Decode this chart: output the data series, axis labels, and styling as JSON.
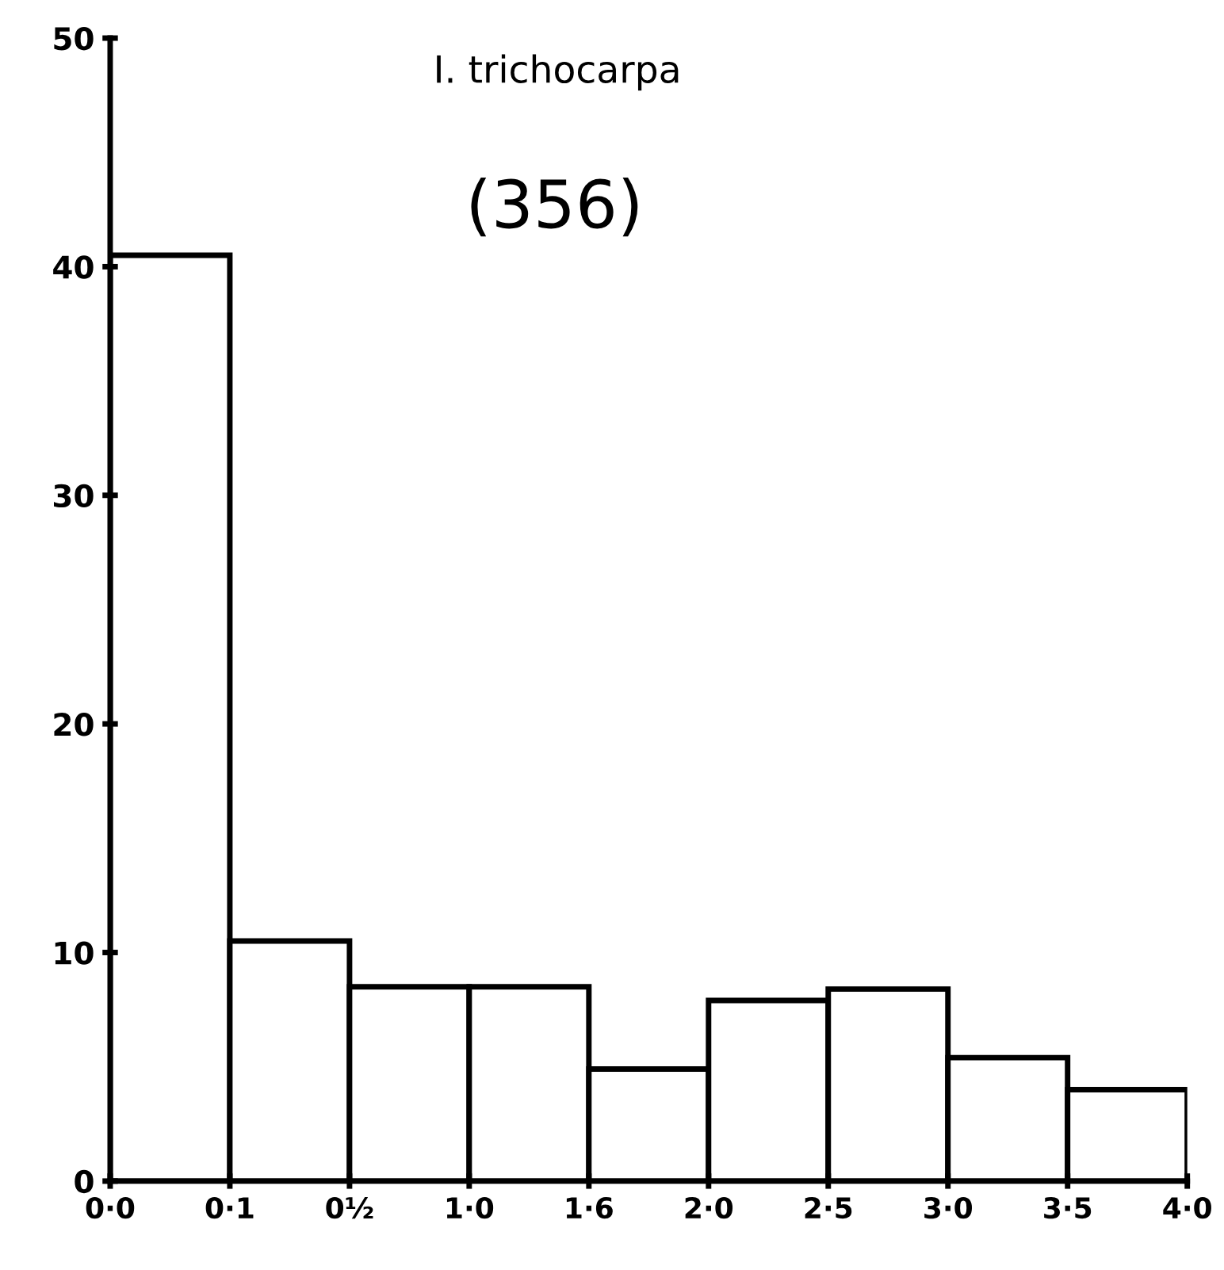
{
  "chart_data": {
    "type": "bar",
    "title": "I. trichocarpa",
    "annotations": [
      "(356)"
    ],
    "categories": [
      "0·0",
      "0·1",
      "0½",
      "1·0",
      "1·6",
      "2·0",
      "2·5",
      "3·0",
      "3·5",
      "4·0"
    ],
    "values": [
      40.5,
      10.5,
      8.5,
      8.5,
      4.9,
      7.9,
      8.4,
      5.4,
      4.0,
      null
    ],
    "color": "#000000",
    "ylim": [
      0,
      50
    ],
    "yticks": [
      0,
      10,
      20,
      30,
      40,
      50
    ],
    "grid": false
  }
}
